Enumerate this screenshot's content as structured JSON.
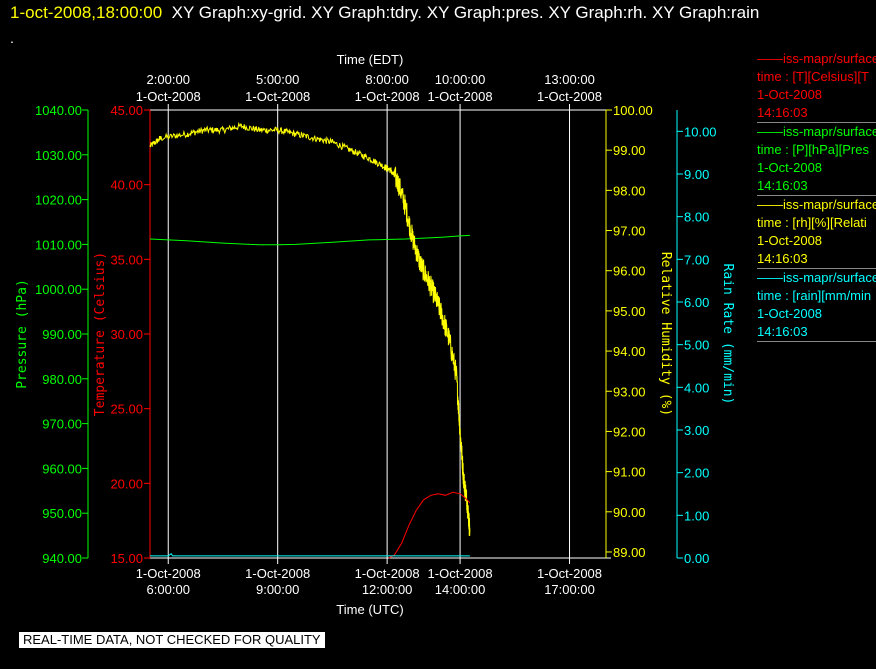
{
  "header": {
    "timestamp": "1-oct-2008,18:00:00",
    "graphs": "XY Graph:xy-grid.  XY Graph:tdry.  XY Graph:pres.  XY Graph:rh.  XY Graph:rain",
    "dot": "."
  },
  "disclaimer": "REAL-TIME DATA, NOT CHECKED FOR QUALITY",
  "legend": [
    {
      "line": "——iss-mapr/surface",
      "var": "time : [T][Celsius][T",
      "date": "1-Oct-2008",
      "time": "14:16:03",
      "color": "#ff0000"
    },
    {
      "line": "——iss-mapr/surface",
      "var": "time : [P][hPa][Pres",
      "date": "1-Oct-2008",
      "time": "14:16:03",
      "color": "#00ff00"
    },
    {
      "line": "——iss-mapr/surface",
      "var": "time : [rh][%][Relati",
      "date": "1-Oct-2008",
      "time": "14:16:03",
      "color": "#ffff00"
    },
    {
      "line": "——iss-mapr/surface",
      "var": "time : [rain][mm/min",
      "date": "1-Oct-2008",
      "time": "14:16:03",
      "color": "#00ffff"
    }
  ],
  "chart_data": {
    "type": "line",
    "top_axis": {
      "label": "Time (EDT)",
      "ticks": [
        {
          "t": 6.0,
          "time": "2:00:00",
          "date": "1-Oct-2008"
        },
        {
          "t": 9.0,
          "time": "5:00:00",
          "date": "1-Oct-2008"
        },
        {
          "t": 12.0,
          "time": "8:00:00",
          "date": "1-Oct-2008"
        },
        {
          "t": 14.0,
          "time": "10:00:00",
          "date": "1-Oct-2008"
        },
        {
          "t": 17.0,
          "time": "13:00:00",
          "date": "1-Oct-2008"
        }
      ]
    },
    "bottom_axis": {
      "label": "Time (UTC)",
      "ticks": [
        {
          "t": 6.0,
          "date": "1-Oct-2008",
          "time": "6:00:00"
        },
        {
          "t": 9.0,
          "date": "1-Oct-2008",
          "time": "9:00:00"
        },
        {
          "t": 12.0,
          "date": "1-Oct-2008",
          "time": "12:00:00"
        },
        {
          "t": 14.0,
          "date": "1-Oct-2008",
          "time": "14:00:00"
        },
        {
          "t": 17.0,
          "date": "1-Oct-2008",
          "time": "17:00:00"
        }
      ]
    },
    "xlim": [
      5.5,
      18.0
    ],
    "grid": true,
    "axes": {
      "pressure": {
        "label": "Pressure (hPa)",
        "color": "#00ff00",
        "ylim": [
          940,
          1040
        ],
        "ticks": [
          "940.00",
          "950.00",
          "960.00",
          "970.00",
          "980.00",
          "990.00",
          "1000.00",
          "1010.00",
          "1020.00",
          "1030.00",
          "1040.00"
        ]
      },
      "temperature": {
        "label": "Temperature (Celsius)",
        "color": "#ff0000",
        "ylim": [
          15,
          45
        ],
        "ticks": [
          "15.00",
          "20.00",
          "25.00",
          "30.00",
          "35.00",
          "40.00",
          "45.00"
        ]
      },
      "rh": {
        "label": "Relative Humidity (%)",
        "color": "#ffff00",
        "ylim": [
          88.85,
          100.0
        ],
        "ticks": [
          "89.00",
          "90.00",
          "91.00",
          "92.00",
          "93.00",
          "94.00",
          "95.00",
          "96.00",
          "97.00",
          "98.00",
          "99.00",
          "100.00"
        ]
      },
      "rain": {
        "label": "Rain Rate (mm/min)",
        "color": "#00ffff",
        "ylim": [
          0,
          10.5
        ],
        "ticks": [
          "0.00",
          "1.00",
          "2.00",
          "3.00",
          "4.00",
          "5.00",
          "6.00",
          "7.00",
          "8.00",
          "9.00",
          "10.00"
        ]
      }
    },
    "series": [
      {
        "axis": "pressure",
        "color": "#00ff00",
        "x": [
          5.5,
          6.5,
          7.5,
          8.5,
          9.0,
          9.5,
          10.5,
          11.5,
          12.5,
          13.5,
          14.0,
          14.27
        ],
        "y": [
          1011.2,
          1010.8,
          1010.3,
          1009.9,
          1009.9,
          1010.0,
          1010.5,
          1011.0,
          1011.2,
          1011.6,
          1011.9,
          1012.0
        ]
      },
      {
        "axis": "rh",
        "color": "#ffff00",
        "noisy": true,
        "x": [
          5.5,
          5.8,
          6.5,
          7.0,
          7.5,
          8.0,
          8.5,
          9.0,
          9.5,
          10.0,
          10.5,
          11.0,
          11.5,
          11.9,
          12.1,
          12.3,
          12.5,
          12.7,
          12.9,
          13.1,
          13.3,
          13.5,
          13.7,
          13.9,
          14.0,
          14.1,
          14.2,
          14.27
        ],
        "y": [
          99.1,
          99.3,
          99.4,
          99.5,
          99.5,
          99.6,
          99.5,
          99.5,
          99.4,
          99.3,
          99.2,
          99.0,
          98.8,
          98.6,
          98.5,
          98.2,
          97.6,
          96.8,
          96.2,
          95.8,
          95.4,
          94.9,
          94.3,
          93.4,
          92.0,
          90.8,
          90.2,
          89.5
        ]
      },
      {
        "axis": "temperature",
        "color": "#ff0000",
        "x": [
          12.05,
          12.2,
          12.4,
          12.6,
          12.8,
          13.0,
          13.2,
          13.4,
          13.6,
          13.8,
          14.0,
          14.15,
          14.27
        ],
        "y": [
          15.0,
          15.2,
          16.0,
          17.2,
          18.2,
          18.9,
          19.2,
          19.3,
          19.2,
          19.4,
          19.3,
          19.0,
          18.7
        ]
      },
      {
        "axis": "rain",
        "color": "#00ffff",
        "x": [
          5.5,
          6.0,
          6.08,
          6.12,
          6.2,
          8.0,
          10.0,
          12.0,
          14.0,
          14.27
        ],
        "y": [
          0.05,
          0.05,
          0.1,
          0.05,
          0.05,
          0.05,
          0.05,
          0.05,
          0.05,
          0.05
        ]
      }
    ]
  }
}
